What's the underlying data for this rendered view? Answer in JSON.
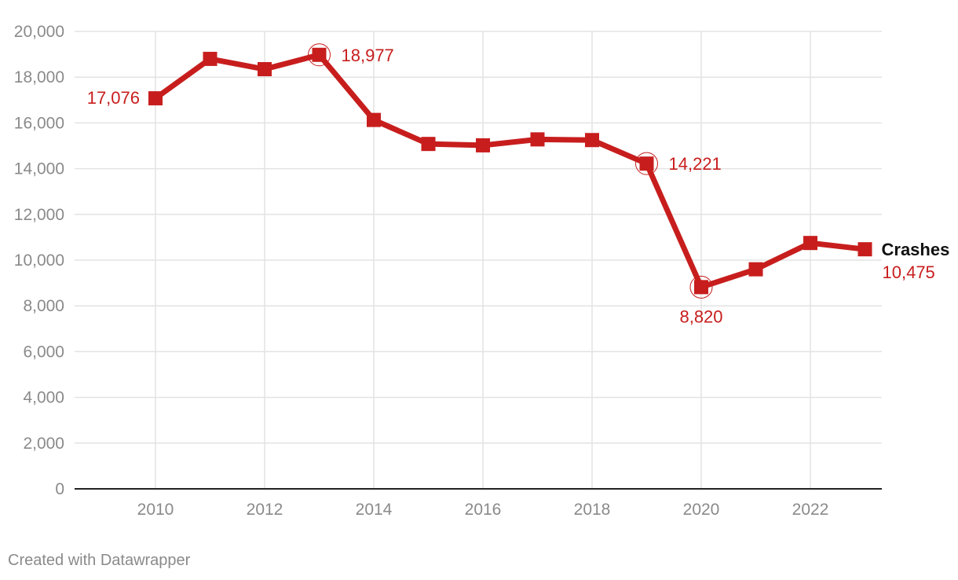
{
  "chart_data": {
    "type": "line",
    "x": [
      2010,
      2011,
      2012,
      2013,
      2014,
      2015,
      2016,
      2017,
      2018,
      2019,
      2020,
      2021,
      2022,
      2023
    ],
    "series": [
      {
        "name": "Crashes",
        "values": [
          17076,
          18800,
          18350,
          18977,
          16130,
          15080,
          15020,
          15280,
          15250,
          14221,
          8820,
          9600,
          10750,
          10475
        ],
        "color": "#c71e1d"
      }
    ],
    "ylim": [
      0,
      20000
    ],
    "xlim": [
      2008.5,
      2023.3
    ],
    "y_ticks": [
      0,
      2000,
      4000,
      6000,
      8000,
      10000,
      12000,
      14000,
      16000,
      18000,
      20000
    ],
    "y_tick_labels": [
      "0",
      "2,000",
      "4,000",
      "6,000",
      "8,000",
      "10,000",
      "12,000",
      "14,000",
      "16,000",
      "18,000",
      "20,000"
    ],
    "x_ticks": [
      2010,
      2012,
      2014,
      2016,
      2018,
      2020,
      2022
    ],
    "x_tick_labels": [
      "2010",
      "2012",
      "2014",
      "2016",
      "2018",
      "2020",
      "2022"
    ],
    "grid": true,
    "annotations": [
      {
        "x": 2010,
        "label": "17,076",
        "side": "left",
        "circled": false
      },
      {
        "x": 2013,
        "label": "18,977",
        "side": "right",
        "circled": true
      },
      {
        "x": 2019,
        "label": "14,221",
        "side": "right",
        "circled": true
      },
      {
        "x": 2020,
        "label": "8,820",
        "side": "below",
        "circled": true
      },
      {
        "x": 2023,
        "label": "10,475",
        "side": "end-below",
        "circled": false
      }
    ],
    "series_label": "Crashes"
  },
  "footer": "Created with Datawrapper"
}
